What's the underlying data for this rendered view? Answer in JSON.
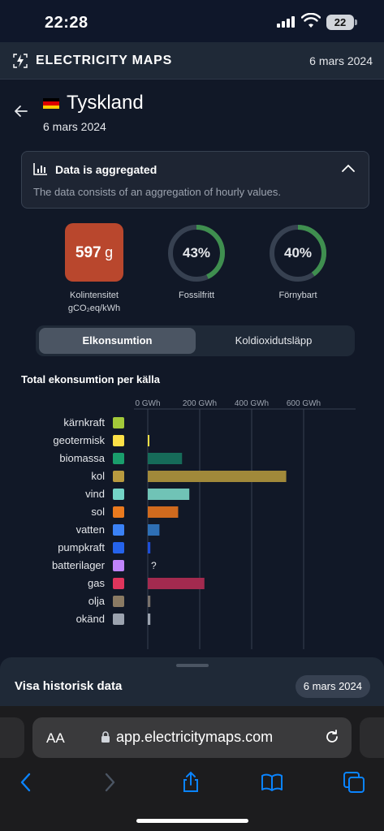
{
  "status": {
    "time": "22:28",
    "battery": "22"
  },
  "app": {
    "brand": "ELECTRICITY MAPS",
    "date": "6 mars 2024"
  },
  "zone": {
    "name": "Tyskland",
    "date": "6 mars 2024",
    "flag_colors": [
      "#000000",
      "#dd0000",
      "#ffce00"
    ]
  },
  "aggregate": {
    "title": "Data is aggregated",
    "text": "The data consists of an aggregation of hourly values."
  },
  "metrics": {
    "carbon": {
      "value": "597",
      "unit": "g",
      "label_line1": "Kolintensitet",
      "label_line2": "gCO₂eq/kWh",
      "color": "#b9472d"
    },
    "fossil_free": {
      "value": "43%",
      "fraction": 0.43,
      "label": "Fossilfritt"
    },
    "renewable": {
      "value": "40%",
      "fraction": 0.4,
      "label": "Förnybart"
    }
  },
  "toggle": {
    "active": "Elkonsumtion",
    "inactive": "Koldioxidutsläpp"
  },
  "chart_title": "Total ekonsumtion per källa",
  "chart_data": {
    "type": "bar",
    "orientation": "horizontal",
    "unit": "GWh",
    "x_ticks": [
      "0 GWh",
      "200 GWh",
      "400 GWh",
      "600 GWh"
    ],
    "xlim": [
      0,
      800
    ],
    "grid": true,
    "categories": [
      "kärnkraft",
      "geotermisk",
      "biomassa",
      "kol",
      "vind",
      "sol",
      "vatten",
      "pumpkraft",
      "batterilager",
      "gas",
      "olja",
      "okänd"
    ],
    "values": [
      0,
      1,
      132,
      533,
      160,
      117,
      45,
      10,
      null,
      218,
      10,
      10
    ],
    "missing_label": "?",
    "bar_colors": [
      "#8b5cf6",
      "#fde047",
      "#166b59",
      "#a1893a",
      "#70c3b6",
      "#d06a1e",
      "#2e6fb5",
      "#1d4ed8",
      "#c084fc",
      "#a32a4f",
      "#78716c",
      "#9ca3af"
    ],
    "icon_colors": [
      "#a3c93a",
      "#fde047",
      "#1a9e6c",
      "#b89a3f",
      "#74d4c6",
      "#ea7a1e",
      "#3b82f6",
      "#2563eb",
      "#c084fc",
      "#e0355c",
      "#8a7a63",
      "#9ca3af"
    ]
  },
  "history": {
    "label": "Visa historisk data",
    "date": "6 mars 2024"
  },
  "browser": {
    "aa": "AA",
    "url": "app.electricitymaps.com"
  }
}
